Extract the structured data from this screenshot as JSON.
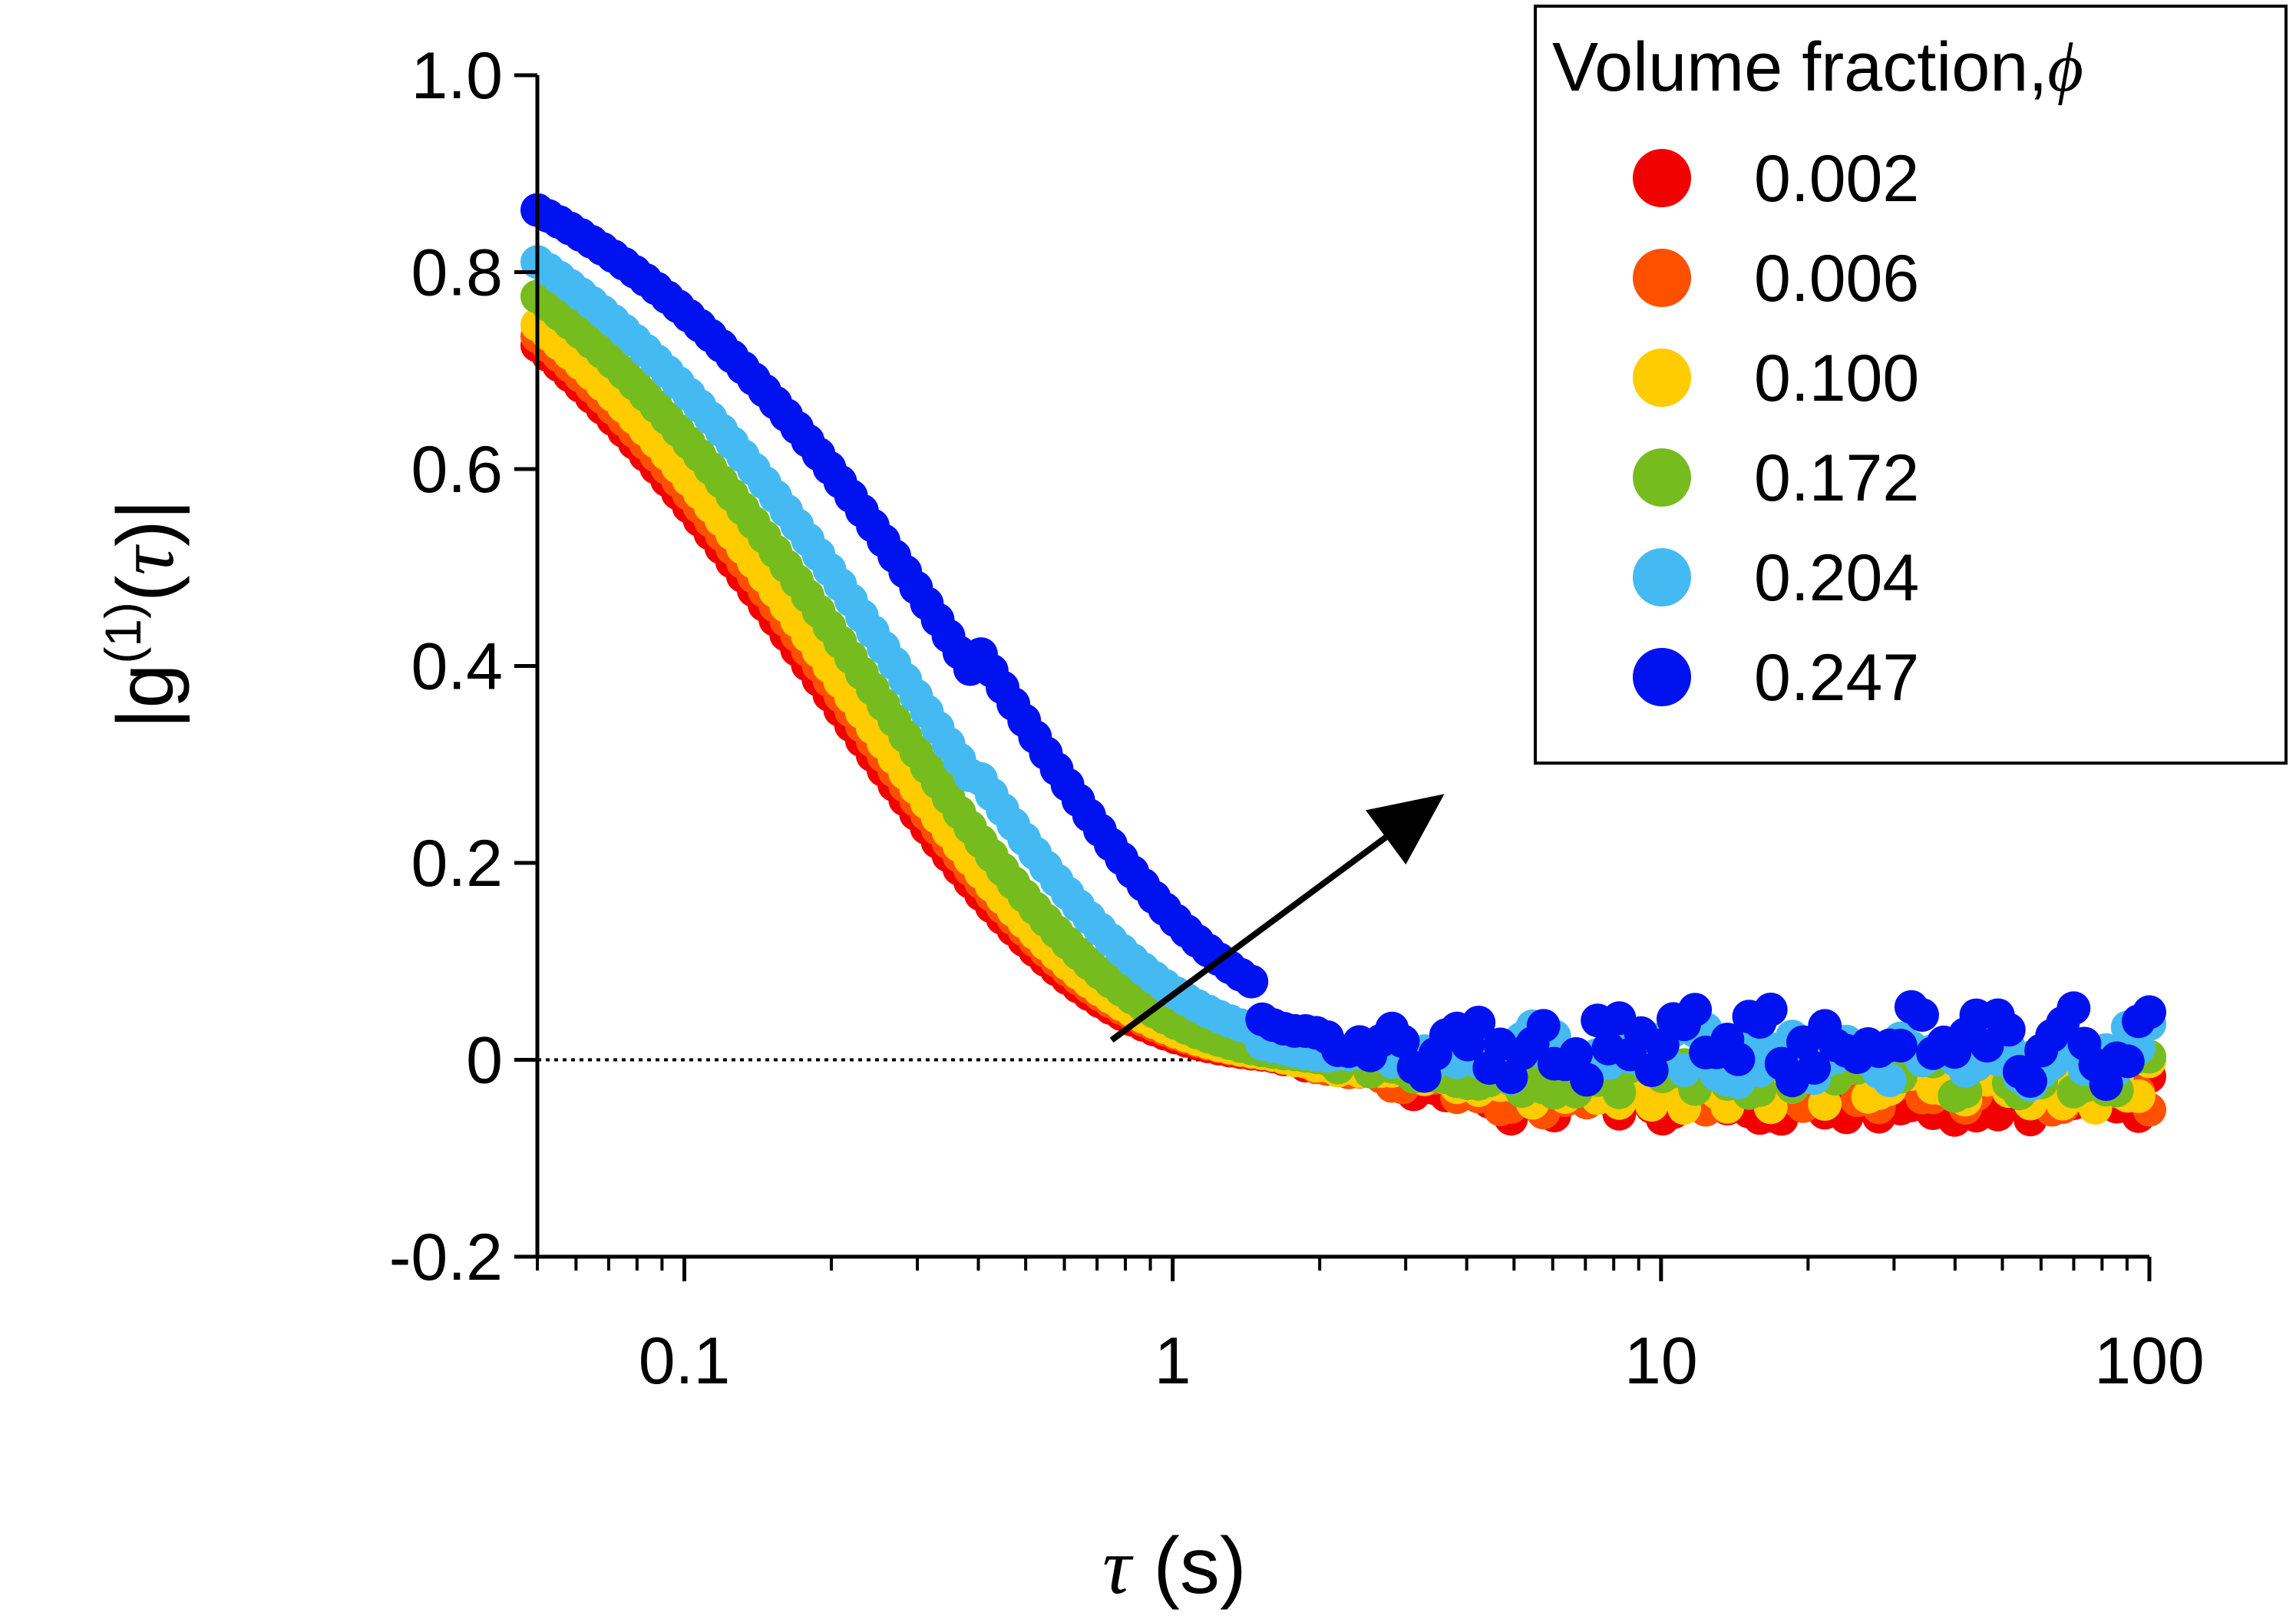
{
  "chart_data": {
    "type": "scatter",
    "x_scale": "log",
    "xlim": [
      0.05,
      100
    ],
    "ylim": [
      -0.2,
      1.0
    ],
    "x_ticks": [
      {
        "value": 0.1,
        "label": "0.1"
      },
      {
        "value": 1,
        "label": "1"
      },
      {
        "value": 10,
        "label": "10"
      },
      {
        "value": 100,
        "label": "100"
      }
    ],
    "y_ticks": [
      {
        "value": 1.0,
        "label": "1.0"
      },
      {
        "value": 0.8,
        "label": "0.8"
      },
      {
        "value": 0.6,
        "label": "0.6"
      },
      {
        "value": 0.4,
        "label": "0.4"
      },
      {
        "value": 0.2,
        "label": "0.2"
      },
      {
        "value": 0,
        "label": "0"
      },
      {
        "value": -0.2,
        "label": "-0.2"
      }
    ],
    "xlabel": {
      "symbol": "τ",
      "unit": " (s)"
    },
    "ylabel": {
      "prefix": "|g",
      "superscript": "(1)",
      "open": "(",
      "arg": "τ",
      "close": ")|"
    },
    "reference_line": {
      "y": 0,
      "style": "dotted"
    },
    "legend": {
      "title": "Volume fraction,",
      "title_symbol": "ϕ",
      "placement": "top-right"
    },
    "arrow": {
      "from": {
        "x": 0.75,
        "y": 0.02
      },
      "to": {
        "x": 3.6,
        "y": 0.27
      }
    },
    "grid": false,
    "series": [
      {
        "name": "0.002",
        "color": "#f20000",
        "tau_e": 0.2,
        "beta": 0.82,
        "offset": -0.036,
        "wiggle": 0.0
      },
      {
        "name": "0.006",
        "color": "#ff5000",
        "tau_e": 0.21,
        "beta": 0.82,
        "offset": -0.03,
        "wiggle": 0.0
      },
      {
        "name": "0.100",
        "color": "#ffcc00",
        "tau_e": 0.22,
        "beta": 0.83,
        "offset": -0.024,
        "wiggle": 0.0
      },
      {
        "name": "0.172",
        "color": "#77bc1f",
        "tau_e": 0.25,
        "beta": 0.85,
        "offset": -0.012,
        "wiggle": 0.0
      },
      {
        "name": "0.204",
        "color": "#45baf2",
        "tau_e": 0.3,
        "beta": 0.87,
        "offset": 0.006,
        "wiggle": 0.015
      },
      {
        "name": "0.247",
        "color": "#0012f0",
        "tau_e": 0.42,
        "beta": 0.9,
        "offset": 0.016,
        "wiggle": 0.04
      }
    ]
  }
}
